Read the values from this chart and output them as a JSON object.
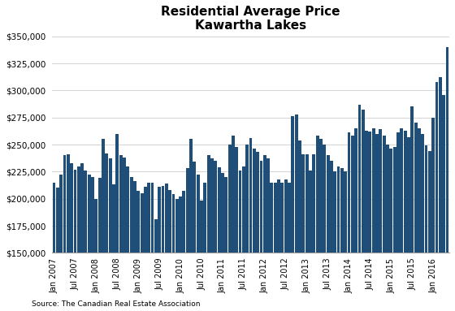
{
  "title_line1": "Residential Average Price",
  "title_line2": "Kawartha Lakes",
  "source": "Source: The Canadian Real Estate Association",
  "bar_color": "#1F4E79",
  "ylim": [
    150000,
    350000
  ],
  "yticks": [
    150000,
    175000,
    200000,
    225000,
    250000,
    275000,
    300000,
    325000,
    350000
  ],
  "tick_labels": [
    "Jan 2007",
    "Jul 2007",
    "Jan 2008",
    "Jul 2008",
    "Jan 2009",
    "Jul 2009",
    "Jan 2010",
    "Jul 2010",
    "Jan 2011",
    "Jul 2011",
    "Jan 2012",
    "Jul 2012",
    "Jan 2013",
    "Jul 2013",
    "Jan 2014",
    "Jul 2014",
    "Jan 2015",
    "Jul 2015",
    "Jan 2016"
  ],
  "values": [
    215000,
    210000,
    222000,
    240000,
    241000,
    233000,
    227000,
    230000,
    233000,
    226000,
    222000,
    220000,
    200000,
    219000,
    255000,
    242000,
    237000,
    213000,
    260000,
    240000,
    238000,
    230000,
    220000,
    216000,
    207000,
    205000,
    211000,
    215000,
    215000,
    181000,
    211000,
    212000,
    214000,
    208000,
    204000,
    200000,
    202000,
    207000,
    228000,
    255000,
    234000,
    222000,
    198000,
    215000,
    240000,
    237000,
    235000,
    229000,
    224000,
    220000,
    250000,
    258000,
    248000,
    226000,
    230000,
    250000,
    256000,
    246000,
    243000,
    235000,
    240000,
    237000,
    215000,
    215000,
    218000,
    215000,
    218000,
    215000,
    276000,
    278000,
    254000,
    241000,
    241000,
    226000,
    241000,
    258000,
    255000,
    250000,
    240000,
    235000,
    225000,
    230000,
    228000,
    225000,
    261000,
    258000,
    265000,
    287000,
    282000,
    263000,
    262000,
    265000,
    260000,
    264000,
    258000,
    250000,
    246000,
    248000,
    261000,
    265000,
    263000,
    257000,
    285000,
    270000,
    265000,
    260000,
    249000,
    244000,
    275000,
    308000,
    312000,
    296000,
    340000
  ]
}
